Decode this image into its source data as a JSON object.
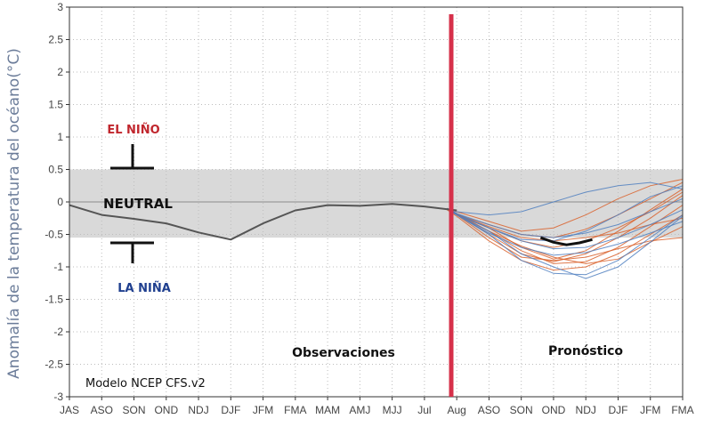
{
  "chart_data": {
    "type": "line",
    "ylabel": "Anomalía  de la temperatura del océano(°C)",
    "xlabel": "",
    "ylim": [
      -3,
      3
    ],
    "yticks": [
      "3",
      "2.5",
      "2",
      "1.5",
      "1",
      "0.5",
      "0",
      "-0.5",
      "-1",
      "-1.5",
      "-2",
      "-2.5",
      "-3"
    ],
    "ytick_values": [
      3,
      2.5,
      2,
      1.5,
      1,
      0.5,
      0,
      -0.5,
      -1,
      -1.5,
      -2,
      -2.5,
      -3
    ],
    "categories": [
      "JAS",
      "ASO",
      "SON",
      "OND",
      "NDJ",
      "DJF",
      "JFM",
      "FMA",
      "MAM",
      "AMJ",
      "MJJ",
      "Jul",
      "Aug",
      "ASO",
      "SON",
      "OND",
      "NDJ",
      "DJF",
      "JFM",
      "FMA"
    ],
    "grid": true,
    "neutral_band": [
      -0.55,
      0.5
    ],
    "forecast_start_index": 12.0,
    "annotations": {
      "el_nino": "EL NIÑO",
      "la_nina": "LA NIÑA",
      "neutral": "NEUTRAL",
      "observations": "Observaciones",
      "forecast": "Pronóstico",
      "model": "Modelo NCEP CFS.v2"
    },
    "colors": {
      "observed": "#555555",
      "forecast_orange": "#d9622b",
      "forecast_blue": "#4f7fbf",
      "forecast_mean": "#111111",
      "divider": "#d6304a",
      "band": "#d9d9d9",
      "el_nino": "#c0262d",
      "la_nina": "#1f3f8f"
    },
    "series": [
      {
        "role": "observed",
        "x": [
          0,
          1,
          2,
          3,
          4,
          5,
          6,
          7,
          8,
          9,
          10,
          11,
          12
        ],
        "values": [
          -0.05,
          -0.2,
          -0.26,
          -0.33,
          -0.47,
          -0.58,
          -0.33,
          -0.13,
          -0.05,
          -0.06,
          -0.03,
          -0.07,
          -0.13
        ]
      },
      {
        "role": "forecast-mean",
        "x": [
          14.6,
          15,
          15.4,
          15.8,
          16.2
        ],
        "values": [
          -0.55,
          -0.62,
          -0.66,
          -0.63,
          -0.58
        ]
      }
    ],
    "ensemble": [
      {
        "color": "orange",
        "x": [
          11.7,
          12,
          13,
          14,
          15,
          16,
          17,
          18,
          19
        ],
        "values": [
          -0.1,
          -0.18,
          -0.45,
          -0.68,
          -0.85,
          -0.95,
          -0.88,
          -0.62,
          -0.38
        ]
      },
      {
        "color": "orange",
        "x": [
          11.7,
          12,
          13,
          14,
          15,
          16,
          17,
          18,
          19
        ],
        "values": [
          -0.12,
          -0.22,
          -0.6,
          -0.9,
          -1.05,
          -1.0,
          -0.8,
          -0.5,
          -0.2
        ]
      },
      {
        "color": "orange",
        "x": [
          11.7,
          12,
          13,
          14,
          15,
          16,
          17,
          18,
          19
        ],
        "values": [
          -0.1,
          -0.2,
          -0.35,
          -0.5,
          -0.55,
          -0.42,
          -0.2,
          0.05,
          0.3
        ]
      },
      {
        "color": "orange",
        "x": [
          11.7,
          12,
          13,
          14,
          15,
          16,
          17,
          18,
          19
        ],
        "values": [
          -0.1,
          -0.18,
          -0.4,
          -0.7,
          -0.88,
          -0.75,
          -0.45,
          -0.12,
          0.2
        ]
      },
      {
        "color": "orange",
        "x": [
          11.7,
          12,
          13,
          14,
          15,
          16,
          17,
          18,
          19
        ],
        "values": [
          -0.1,
          -0.15,
          -0.3,
          -0.45,
          -0.4,
          -0.2,
          0.05,
          0.25,
          0.35
        ]
      },
      {
        "color": "orange",
        "x": [
          11.7,
          12,
          13,
          14,
          15,
          16,
          17,
          18,
          19
        ],
        "values": [
          -0.1,
          -0.2,
          -0.55,
          -0.85,
          -0.9,
          -0.85,
          -0.72,
          -0.6,
          -0.55
        ]
      },
      {
        "color": "orange",
        "x": [
          11.7,
          12,
          13,
          14,
          15,
          16,
          17,
          18,
          19
        ],
        "values": [
          -0.1,
          -0.2,
          -0.45,
          -0.75,
          -0.95,
          -0.92,
          -0.7,
          -0.38,
          -0.05
        ]
      },
      {
        "color": "orange",
        "x": [
          11.7,
          12,
          13,
          14,
          15,
          16,
          17,
          18,
          19
        ],
        "values": [
          -0.1,
          -0.18,
          -0.5,
          -0.8,
          -0.92,
          -0.8,
          -0.55,
          -0.25,
          0.1
        ]
      },
      {
        "color": "orange",
        "x": [
          11.7,
          12,
          13,
          14,
          15,
          16,
          17,
          18,
          19
        ],
        "values": [
          -0.1,
          -0.2,
          -0.4,
          -0.6,
          -0.7,
          -0.6,
          -0.4,
          -0.15,
          0.15
        ]
      },
      {
        "color": "orange",
        "x": [
          11.7,
          12,
          13,
          14,
          15,
          16,
          17,
          18,
          19
        ],
        "values": [
          -0.1,
          -0.2,
          -0.38,
          -0.55,
          -0.6,
          -0.55,
          -0.48,
          -0.35,
          -0.25
        ]
      },
      {
        "color": "blue",
        "x": [
          11.7,
          12,
          13,
          14,
          15,
          16,
          17,
          18,
          19
        ],
        "values": [
          -0.1,
          -0.15,
          -0.2,
          -0.15,
          0.0,
          0.15,
          0.25,
          0.3,
          0.2
        ]
      },
      {
        "color": "blue",
        "x": [
          11.7,
          12,
          13,
          14,
          15,
          16,
          17,
          18,
          19
        ],
        "values": [
          -0.1,
          -0.2,
          -0.5,
          -0.9,
          -1.1,
          -1.12,
          -0.9,
          -0.55,
          -0.2
        ]
      },
      {
        "color": "blue",
        "x": [
          11.7,
          12,
          13,
          14,
          15,
          16,
          17,
          18,
          19
        ],
        "values": [
          -0.1,
          -0.2,
          -0.45,
          -0.8,
          -1.0,
          -1.18,
          -1.0,
          -0.62,
          -0.22
        ]
      },
      {
        "color": "blue",
        "x": [
          11.7,
          12,
          13,
          14,
          15,
          16,
          17,
          18,
          19
        ],
        "values": [
          -0.1,
          -0.18,
          -0.4,
          -0.6,
          -0.72,
          -0.7,
          -0.55,
          -0.35,
          -0.12
        ]
      },
      {
        "color": "blue",
        "x": [
          11.7,
          12,
          13,
          14,
          15,
          16,
          17,
          18,
          19
        ],
        "values": [
          -0.1,
          -0.18,
          -0.35,
          -0.5,
          -0.55,
          -0.48,
          -0.35,
          -0.15,
          0.05
        ]
      },
      {
        "color": "blue",
        "x": [
          11.7,
          12,
          13,
          14,
          15,
          16,
          17,
          18,
          19
        ],
        "values": [
          -0.1,
          -0.2,
          -0.48,
          -0.7,
          -0.82,
          -0.78,
          -0.65,
          -0.48,
          -0.3
        ]
      },
      {
        "color": "blue",
        "x": [
          11.7,
          12,
          13,
          14,
          15,
          16,
          17,
          18,
          19
        ],
        "values": [
          -0.1,
          -0.2,
          -0.4,
          -0.58,
          -0.6,
          -0.45,
          -0.2,
          0.08,
          0.25
        ]
      }
    ]
  }
}
